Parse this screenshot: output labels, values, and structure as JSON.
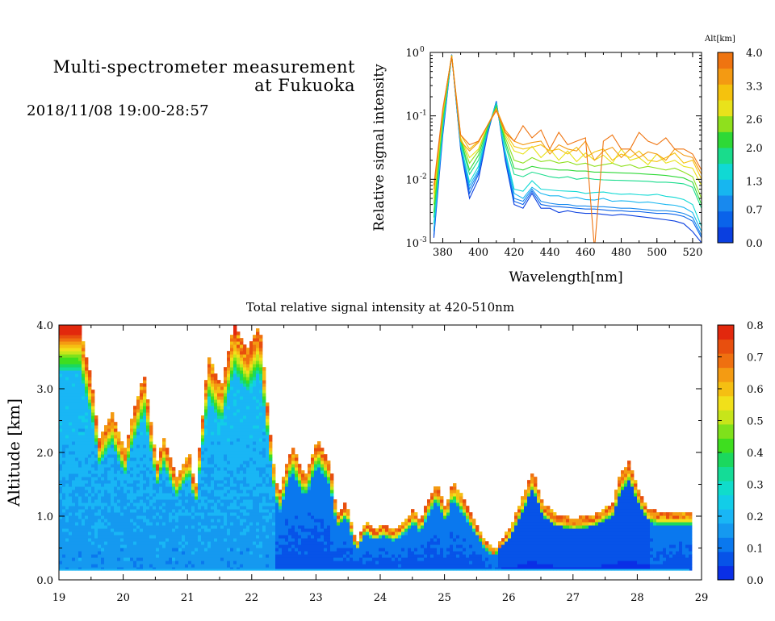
{
  "heading": {
    "line1": "Multi-spectrometer measurement",
    "line2": "at Fukuoka",
    "date": "2018/11/08 19:00-28:57"
  },
  "colors": {
    "altitude_scale": [
      "#0a3fe0",
      "#0a63ea",
      "#1889ee",
      "#17b6f0",
      "#10d9d4",
      "#19dc8c",
      "#2ed936",
      "#8fe01d",
      "#e9e21b",
      "#f5c20d",
      "#f49a12",
      "#ef7410"
    ],
    "intensity_scale": [
      "#0a2fe6",
      "#0753e8",
      "#0a78ee",
      "#1599f0",
      "#19b6f5",
      "#12cde8",
      "#10dccb",
      "#14dc97",
      "#1bd85e",
      "#3ede1f",
      "#7fe11b",
      "#c7e51a",
      "#f1e01a",
      "#f5bf12",
      "#f49b12",
      "#ef7010",
      "#e84f0e",
      "#e2280d"
    ]
  },
  "chart_data": [
    {
      "type": "line",
      "xlabel": "Wavelength[nm]",
      "ylabel": "Relative signal intensity",
      "xlim": [
        373,
        525
      ],
      "ylim": [
        0.001,
        1
      ],
      "yscale": "log",
      "x_ticks": [
        "380",
        "400",
        "420",
        "440",
        "460",
        "480",
        "500",
        "520"
      ],
      "y_ticks": [
        {
          "base": "10",
          "exp": "0"
        },
        {
          "base": "10",
          "exp": "-1"
        },
        {
          "base": "10",
          "exp": "-2"
        },
        {
          "base": "10",
          "exp": "-3"
        }
      ],
      "colorbar": {
        "title": "Alt[km]",
        "ticks": [
          "0.0",
          "0.7",
          "1.3",
          "2.0",
          "2.6",
          "3.3",
          "4.0"
        ],
        "range": [
          0,
          4
        ]
      },
      "x": [
        375,
        380,
        385,
        390,
        395,
        400,
        405,
        410,
        415,
        420,
        425,
        430,
        435,
        440,
        445,
        450,
        455,
        460,
        465,
        470,
        475,
        480,
        485,
        490,
        495,
        500,
        505,
        510,
        515,
        520,
        525
      ],
      "series": [
        {
          "alt": 0.1,
          "values": [
            0.0012,
            0.05,
            0.92,
            0.03,
            0.005,
            0.01,
            0.05,
            0.17,
            0.02,
            0.004,
            0.0035,
            0.006,
            0.0035,
            0.0035,
            0.003,
            0.0032,
            0.003,
            0.0029,
            0.0029,
            0.0028,
            0.0027,
            0.0028,
            0.0027,
            0.0026,
            0.0025,
            0.0024,
            0.0023,
            0.0022,
            0.002,
            0.0015,
            0.001
          ]
        },
        {
          "alt": 0.4,
          "values": [
            0.0013,
            0.055,
            0.93,
            0.032,
            0.006,
            0.012,
            0.055,
            0.17,
            0.022,
            0.0045,
            0.004,
            0.0065,
            0.004,
            0.0038,
            0.0037,
            0.0036,
            0.0035,
            0.0034,
            0.0034,
            0.0033,
            0.0032,
            0.0032,
            0.0031,
            0.0031,
            0.003,
            0.0029,
            0.0029,
            0.0028,
            0.0026,
            0.0022,
            0.0012
          ]
        },
        {
          "alt": 0.8,
          "values": [
            0.0015,
            0.06,
            0.9,
            0.033,
            0.007,
            0.013,
            0.055,
            0.16,
            0.024,
            0.005,
            0.0045,
            0.007,
            0.0045,
            0.0042,
            0.004,
            0.004,
            0.0038,
            0.0038,
            0.0037,
            0.0037,
            0.0036,
            0.0035,
            0.0035,
            0.0034,
            0.0033,
            0.0032,
            0.0032,
            0.0031,
            0.0029,
            0.0025,
            0.0013
          ]
        },
        {
          "alt": 1.1,
          "values": [
            0.0016,
            0.06,
            0.91,
            0.035,
            0.008,
            0.014,
            0.06,
            0.16,
            0.026,
            0.006,
            0.005,
            0.0075,
            0.006,
            0.0055,
            0.0055,
            0.005,
            0.0052,
            0.0048,
            0.0047,
            0.005,
            0.0045,
            0.0046,
            0.0045,
            0.0043,
            0.0044,
            0.0042,
            0.004,
            0.0039,
            0.0036,
            0.003,
            0.0015
          ]
        },
        {
          "alt": 1.4,
          "values": [
            0.002,
            0.07,
            0.9,
            0.036,
            0.009,
            0.016,
            0.06,
            0.155,
            0.028,
            0.007,
            0.0065,
            0.0095,
            0.007,
            0.0068,
            0.0066,
            0.0065,
            0.0064,
            0.006,
            0.0062,
            0.0063,
            0.006,
            0.0058,
            0.0059,
            0.0057,
            0.0056,
            0.0058,
            0.0054,
            0.0052,
            0.0048,
            0.004,
            0.0018
          ]
        },
        {
          "alt": 1.8,
          "values": [
            0.0025,
            0.08,
            0.9,
            0.04,
            0.012,
            0.02,
            0.06,
            0.15,
            0.035,
            0.012,
            0.011,
            0.013,
            0.012,
            0.011,
            0.0105,
            0.011,
            0.01,
            0.0105,
            0.01,
            0.0098,
            0.0097,
            0.0096,
            0.0095,
            0.0094,
            0.0093,
            0.009,
            0.009,
            0.0088,
            0.0085,
            0.0075,
            0.0035
          ]
        },
        {
          "alt": 2.1,
          "values": [
            0.003,
            0.09,
            0.9,
            0.042,
            0.014,
            0.024,
            0.065,
            0.14,
            0.04,
            0.015,
            0.014,
            0.016,
            0.015,
            0.0145,
            0.014,
            0.014,
            0.0135,
            0.0135,
            0.013,
            0.013,
            0.0128,
            0.0126,
            0.0125,
            0.0123,
            0.012,
            0.0118,
            0.0115,
            0.011,
            0.0105,
            0.009,
            0.004
          ]
        },
        {
          "alt": 2.5,
          "values": [
            0.004,
            0.1,
            0.9,
            0.044,
            0.018,
            0.028,
            0.07,
            0.13,
            0.046,
            0.02,
            0.018,
            0.022,
            0.019,
            0.02,
            0.018,
            0.019,
            0.017,
            0.018,
            0.016,
            0.017,
            0.018,
            0.016,
            0.017,
            0.015,
            0.016,
            0.015,
            0.014,
            0.015,
            0.013,
            0.011,
            0.005
          ]
        },
        {
          "alt": 2.9,
          "values": [
            0.005,
            0.11,
            0.9,
            0.045,
            0.022,
            0.03,
            0.07,
            0.13,
            0.05,
            0.028,
            0.025,
            0.033,
            0.022,
            0.03,
            0.02,
            0.028,
            0.019,
            0.026,
            0.02,
            0.024,
            0.018,
            0.03,
            0.02,
            0.022,
            0.017,
            0.025,
            0.018,
            0.02,
            0.016,
            0.015,
            0.008
          ]
        },
        {
          "alt": 3.2,
          "values": [
            0.006,
            0.12,
            0.9,
            0.05,
            0.03,
            0.04,
            0.07,
            0.13,
            0.055,
            0.033,
            0.03,
            0.032,
            0.035,
            0.028,
            0.03,
            0.025,
            0.032,
            0.022,
            0.027,
            0.03,
            0.02,
            0.025,
            0.022,
            0.028,
            0.02,
            0.019,
            0.022,
            0.026,
            0.018,
            0.02,
            0.01
          ]
        },
        {
          "alt": 3.5,
          "values": [
            0.007,
            0.12,
            0.88,
            0.04,
            0.028,
            0.038,
            0.07,
            0.13,
            0.06,
            0.04,
            0.035,
            0.038,
            0.04,
            0.025,
            0.035,
            0.03,
            0.028,
            0.04,
            0.02,
            0.028,
            0.032,
            0.022,
            0.03,
            0.022,
            0.027,
            0.025,
            0.02,
            0.03,
            0.024,
            0.022,
            0.012
          ]
        },
        {
          "alt": 3.9,
          "values": [
            0.008,
            0.13,
            0.85,
            0.05,
            0.035,
            0.04,
            0.07,
            0.12,
            0.055,
            0.04,
            0.07,
            0.045,
            0.06,
            0.03,
            0.055,
            0.035,
            0.04,
            0.045,
            0.0008,
            0.04,
            0.05,
            0.03,
            0.03,
            0.055,
            0.04,
            0.035,
            0.045,
            0.03,
            0.03,
            0.025,
            0.014
          ]
        }
      ]
    },
    {
      "type": "heatmap",
      "title": "Total relative signal intensity at 420-510nm",
      "ylabel": "Altitude [km]",
      "xlim": [
        19,
        29
      ],
      "ylim": [
        0,
        4
      ],
      "x_ticks": [
        "19",
        "20",
        "21",
        "22",
        "23",
        "24",
        "25",
        "26",
        "27",
        "28",
        "29"
      ],
      "y_ticks": [
        "0.0",
        "1.0",
        "2.0",
        "3.0",
        "4.0"
      ],
      "colorbar": {
        "ticks": [
          "0.0",
          "0.1",
          "0.2",
          "0.3",
          "0.4",
          "0.5",
          "0.6",
          "0.7",
          "0.8"
        ],
        "range": [
          0,
          0.8
        ]
      },
      "cloud_base_profile": {
        "x": [
          19.0,
          19.3,
          19.5,
          19.6,
          19.8,
          20.0,
          20.1,
          20.3,
          20.5,
          20.6,
          20.8,
          21.0,
          21.1,
          21.3,
          21.5,
          21.7,
          21.9,
          22.1,
          22.3,
          22.4,
          22.6,
          22.8,
          23.0,
          23.2,
          23.3,
          23.45,
          23.6,
          23.75,
          23.9,
          24.0,
          24.2,
          24.4,
          24.5,
          24.6,
          24.7,
          24.85,
          25.0,
          25.1,
          25.3,
          25.45,
          25.6,
          25.75,
          25.85,
          26.0,
          26.2,
          26.35,
          26.5,
          26.7,
          27.0,
          27.3,
          27.6,
          27.7,
          27.85,
          28.0,
          28.15,
          28.3,
          28.5,
          28.8
        ],
        "top_km": [
          4.0,
          4.0,
          3.0,
          2.2,
          2.6,
          2.0,
          2.5,
          3.2,
          1.8,
          2.2,
          1.6,
          2.0,
          1.4,
          3.5,
          3.0,
          4.0,
          3.6,
          4.0,
          1.9,
          1.3,
          2.1,
          1.6,
          2.2,
          1.8,
          1.0,
          1.2,
          0.55,
          0.9,
          0.75,
          0.85,
          0.75,
          0.95,
          1.1,
          0.9,
          1.2,
          1.5,
          1.1,
          1.55,
          1.2,
          0.9,
          0.6,
          0.45,
          0.6,
          0.8,
          1.3,
          1.7,
          1.2,
          1.0,
          0.95,
          1.0,
          1.2,
          1.6,
          1.85,
          1.4,
          1.1,
          1.05,
          1.05,
          1.05
        ]
      }
    }
  ]
}
